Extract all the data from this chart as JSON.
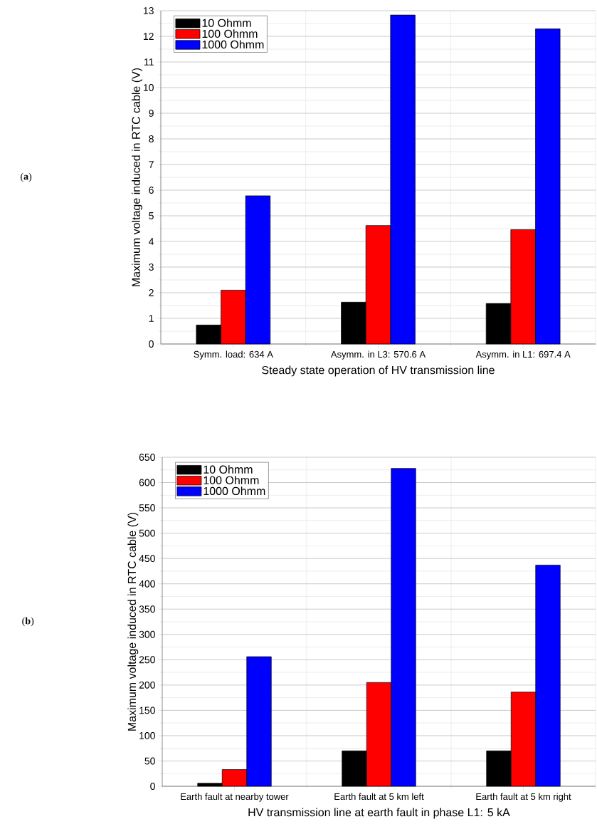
{
  "chart_data": [
    {
      "type": "bar",
      "xlabel": "Steady state operation of HV transmission line",
      "ylabel": "Maximum voltage induced in RTC cable (V)",
      "categories": [
        "Symm. load: 634 A",
        "Asymm. in L3: 570.6 A",
        "Asymm. in L1: 697.4 A"
      ],
      "series": [
        {
          "name": "10 Ohmm",
          "color": "#000000",
          "values": [
            0.74,
            1.63,
            1.58
          ]
        },
        {
          "name": "100 Ohmm",
          "color": "#ff0000",
          "values": [
            2.1,
            4.62,
            4.46
          ]
        },
        {
          "name": "1000 Ohmm",
          "color": "#0000ff",
          "values": [
            5.78,
            12.83,
            12.29
          ]
        }
      ],
      "ylim": [
        0,
        13
      ],
      "yticks": [
        0,
        1,
        2,
        3,
        4,
        5,
        6,
        7,
        8,
        9,
        10,
        11,
        12,
        13
      ],
      "grid": true,
      "legend": "top left",
      "annotations": [
        "(**a**)"
      ]
    },
    {
      "type": "bar",
      "xlabel": "HV transmission line at earth fault in phase L1: 5 kA",
      "ylabel": "Maximum voltage induced in RTC cable (V)",
      "categories": [
        "Earth fault at nearby tower",
        "Earth fault at 5 km left",
        "Earth fault at 5 km right"
      ],
      "series": [
        {
          "name": "10 Ohmm",
          "color": "#000000",
          "values": [
            6,
            70,
            70
          ]
        },
        {
          "name": "100 Ohmm",
          "color": "#ff0000",
          "values": [
            33,
            205,
            186
          ]
        },
        {
          "name": "1000 Ohmm",
          "color": "#0000ff",
          "values": [
            256,
            628,
            437
          ]
        }
      ],
      "ylim": [
        0,
        650
      ],
      "yticks": [
        0,
        50,
        100,
        150,
        200,
        250,
        300,
        350,
        400,
        450,
        500,
        550,
        600,
        650
      ],
      "grid": true,
      "legend": "top left",
      "annotations": [
        "(**b**)"
      ]
    }
  ]
}
